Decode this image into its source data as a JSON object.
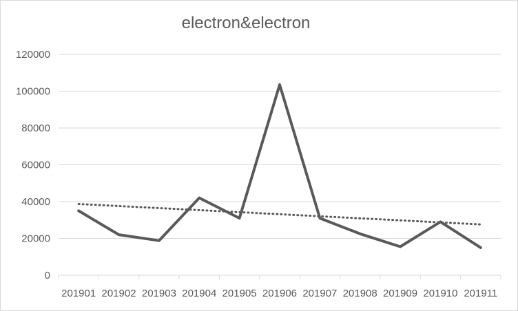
{
  "chart_data": {
    "type": "line",
    "title": "electron&electron",
    "xlabel": "",
    "ylabel": "",
    "categories": [
      "201901",
      "201902",
      "201903",
      "201904",
      "201905",
      "201906",
      "201907",
      "201908",
      "201909",
      "201910",
      "201911"
    ],
    "series": [
      {
        "values": [
          35000,
          22000,
          18800,
          42000,
          31000,
          103500,
          31000,
          22500,
          15500,
          29000,
          15000
        ],
        "color": "#595959",
        "style": "solid"
      }
    ],
    "trendline": {
      "type": "linear",
      "style": "dotted",
      "color": "#595959",
      "start": 38700,
      "end": 27600
    },
    "ylim": [
      0,
      120000
    ],
    "yticks": [
      0,
      20000,
      40000,
      60000,
      80000,
      100000,
      120000
    ],
    "grid": true,
    "legend": "none"
  }
}
